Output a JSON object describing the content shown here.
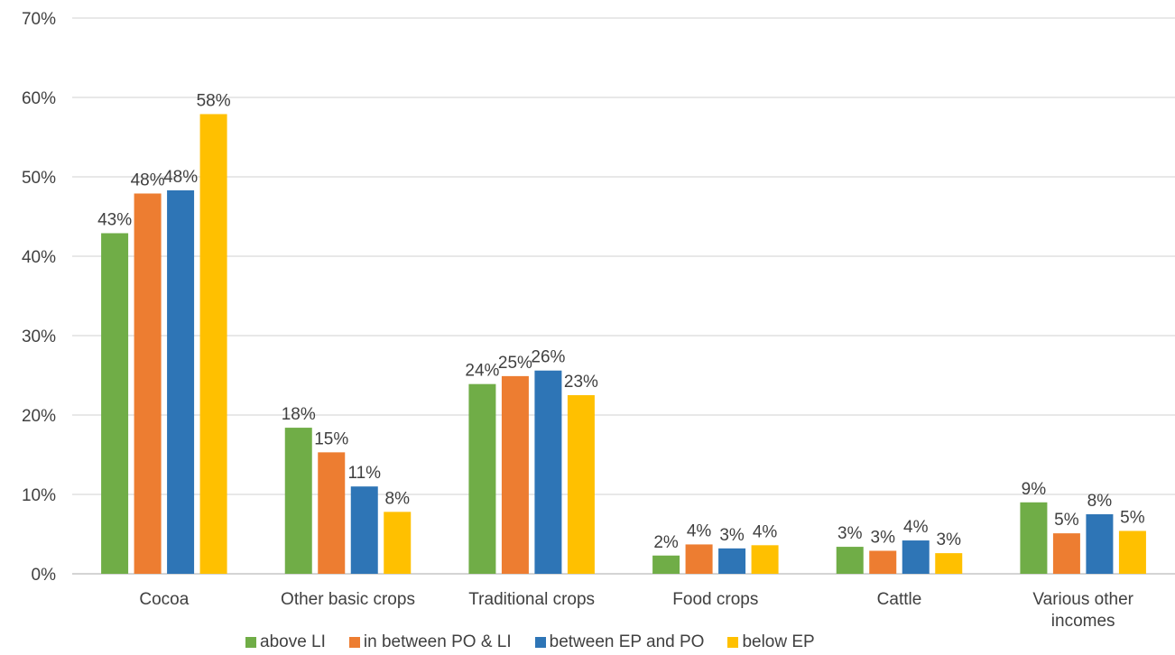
{
  "chart_data": {
    "type": "bar",
    "categories": [
      [
        "Cocoa"
      ],
      [
        "Other basic crops"
      ],
      [
        "Traditional crops"
      ],
      [
        "Food crops"
      ],
      [
        "Cattle"
      ],
      [
        "Various other",
        "incomes"
      ]
    ],
    "series": [
      {
        "name": "above LI",
        "color": "#70AD47",
        "values": [
          43,
          18,
          24,
          2,
          3,
          9
        ]
      },
      {
        "name": "in between PO & LI",
        "color": "#ED7D31",
        "values": [
          48,
          15,
          25,
          4,
          3,
          5
        ]
      },
      {
        "name": "between EP and PO",
        "color": "#2E75B6",
        "values": [
          48,
          11,
          26,
          3,
          4,
          8
        ]
      },
      {
        "name": "below EP",
        "color": "#FFC000",
        "values": [
          58,
          8,
          23,
          4,
          3,
          5
        ]
      }
    ],
    "bar_values_exact": [
      [
        42.9,
        18.4,
        23.9,
        2.3,
        3.4,
        9.0
      ],
      [
        47.9,
        15.3,
        24.9,
        3.7,
        2.9,
        5.1
      ],
      [
        48.3,
        11.0,
        25.6,
        3.2,
        4.2,
        7.5
      ],
      [
        57.9,
        7.8,
        22.5,
        3.6,
        2.6,
        5.4
      ]
    ],
    "data_labels": [
      [
        "43%",
        "18%",
        "24%",
        "2%",
        "3%",
        "9%"
      ],
      [
        "48%",
        "15%",
        "25%",
        "4%",
        "3%",
        "5%"
      ],
      [
        "48%",
        "11%",
        "26%",
        "3%",
        "4%",
        "8%"
      ],
      [
        "58%",
        "8%",
        "23%",
        "4%",
        "3%",
        "5%"
      ]
    ],
    "ylim": [
      0,
      70
    ],
    "y_ticks": [
      "0%",
      "10%",
      "20%",
      "30%",
      "40%",
      "50%",
      "60%",
      "70%"
    ],
    "grid": true,
    "legend_position": "bottom",
    "title": "",
    "xlabel": "",
    "ylabel": ""
  }
}
